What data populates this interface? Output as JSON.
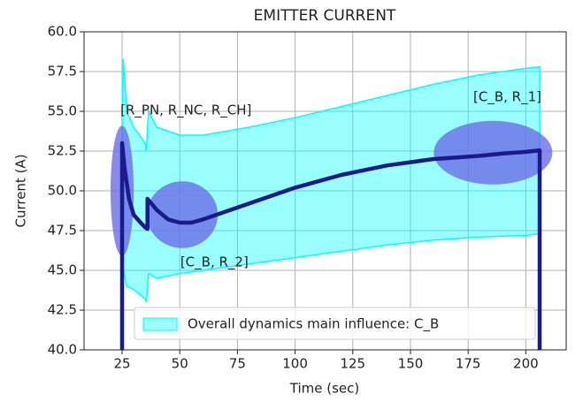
{
  "chart_data": {
    "type": "line",
    "title": "EMITTER CURRENT",
    "xlabel": "Time (sec)",
    "ylabel": "Current (A)",
    "xlim": [
      8.5,
      217.5
    ],
    "ylim": [
      40,
      60
    ],
    "xticks": [
      25,
      50,
      75,
      100,
      125,
      150,
      175,
      200
    ],
    "yticks": [
      {
        "value": 40,
        "label": "40.0"
      },
      {
        "value": 42.5,
        "label": "42.5"
      },
      {
        "value": 45,
        "label": "45.0"
      },
      {
        "value": 47.5,
        "label": "47.5"
      },
      {
        "value": 50,
        "label": "50.0"
      },
      {
        "value": 52.5,
        "label": "52.5"
      },
      {
        "value": 55,
        "label": "55.0"
      },
      {
        "value": 57.5,
        "label": "57.5"
      },
      {
        "value": 60,
        "label": "60.0"
      }
    ],
    "grid": true,
    "legend": "lower right",
    "band": {
      "name": "Overall dynamics main influence: C_B",
      "color": "#00ffff",
      "x": [
        25,
        25.5,
        27,
        30,
        35,
        35.5,
        36,
        36.5,
        40,
        50,
        60,
        80,
        100,
        120,
        140,
        160,
        180,
        200,
        206
      ],
      "upper": [
        55,
        58.3,
        55,
        54,
        53,
        52.5,
        54,
        55,
        54,
        53.5,
        53.5,
        54,
        54.6,
        55.3,
        56,
        56.7,
        57.3,
        57.7,
        57.8
      ],
      "lower": [
        46,
        45,
        44,
        43.8,
        43.2,
        43,
        44,
        44.8,
        44.5,
        44.8,
        45,
        45.4,
        45.8,
        46.2,
        46.6,
        46.9,
        47.1,
        47.2,
        47.3
      ]
    },
    "line": {
      "color": "#1a1a8c",
      "x": [
        25,
        25,
        26,
        28,
        30,
        33,
        35,
        36,
        36,
        40,
        45,
        50,
        55,
        60,
        70,
        80,
        90,
        100,
        110,
        120,
        130,
        140,
        150,
        160,
        170,
        180,
        190,
        200,
        206,
        206
      ],
      "values": [
        40,
        53,
        51.5,
        49.5,
        48.5,
        48,
        47.7,
        47.6,
        49.5,
        48.8,
        48.2,
        48.0,
        48.0,
        48.2,
        48.7,
        49.2,
        49.7,
        50.2,
        50.6,
        51.0,
        51.3,
        51.6,
        51.8,
        52.0,
        52.1,
        52.2,
        52.35,
        52.45,
        52.55,
        40
      ]
    },
    "ellipses": [
      {
        "label": "[R_PN, R_NC, R_CH]",
        "x": 25,
        "y": 50,
        "width": 10,
        "height": 8.2,
        "text_x": 52.7,
        "text_y": 55.05,
        "color": "#6a6ee8"
      },
      {
        "label": "[C_B, R_2]",
        "x": 51.1,
        "y": 48.5,
        "width": 30.7,
        "height": 4.2,
        "text_x": 65,
        "text_y": 45.5,
        "color": "#6a6ee8"
      },
      {
        "label": "[C_B, R_1]",
        "x": 185.8,
        "y": 52.4,
        "width": 51.4,
        "height": 4,
        "text_x": 192,
        "text_y": 55.9,
        "color": "#6a6ee8"
      }
    ]
  }
}
